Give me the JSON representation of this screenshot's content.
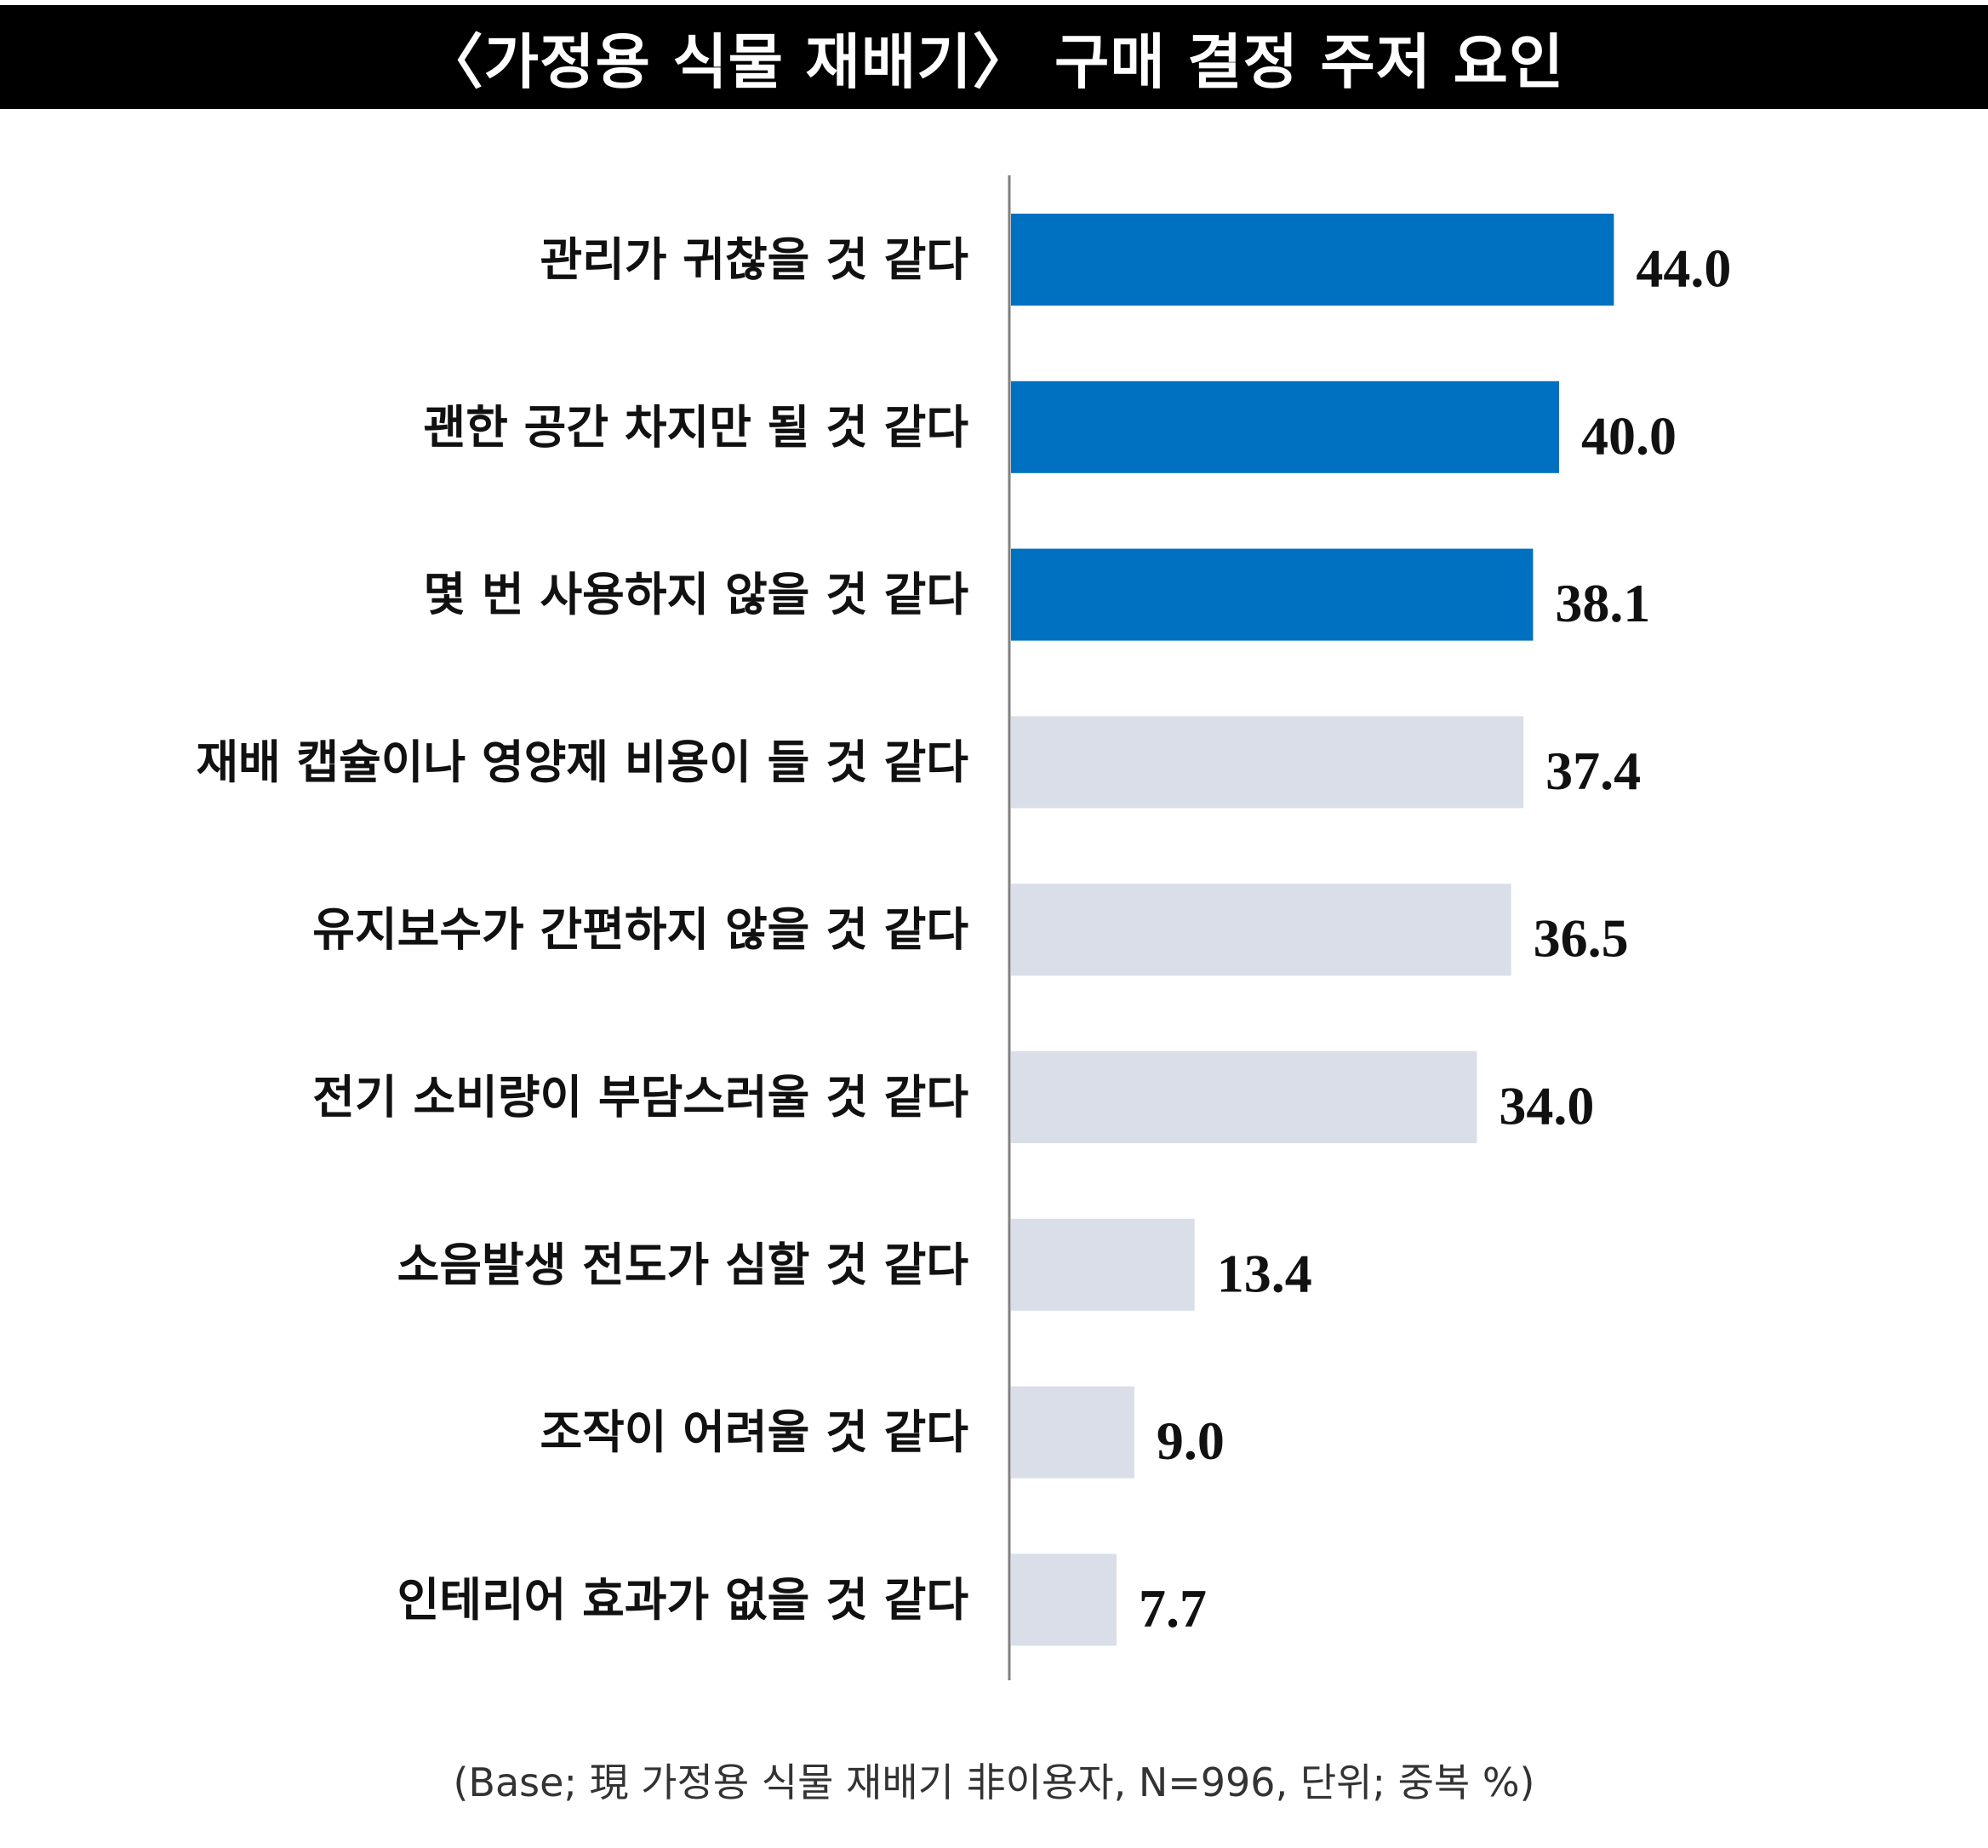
{
  "chart_data": {
    "type": "bar",
    "orientation": "horizontal",
    "title": "〈가정용 식물 재배기〉 구매 결정 주저 요인",
    "categories": [
      "관리가 귀찮을 것 같다",
      "괜한 공간 차지만 될 것 같다",
      "몇 번 사용하지 않을 것 같다",
      "재배 캡슐이나 영양제 비용이 들 것 같다",
      "유지보수가 간편하지 않을 것 같다",
      "전기 소비량이 부담스러울 것 같다",
      "소음발생 전도가 심할 것 같다",
      "조작이 어려울 것 같다",
      "인테리어 효과가 없을 것 같다"
    ],
    "values": [
      44.0,
      40.0,
      38.1,
      37.4,
      36.5,
      34.0,
      13.4,
      9.0,
      7.7
    ],
    "value_labels": [
      "44.0",
      "40.0",
      "38.1",
      "37.4",
      "36.5",
      "34.0",
      "13.4",
      "9.0",
      "7.7"
    ],
    "highlighted_count": 3,
    "colors": {
      "highlight": "#0070c0",
      "default": "#d9dee8",
      "axis": "#808080",
      "title_background": "#000000",
      "title_text": "#ffffff"
    },
    "xlim": [
      0,
      100
    ],
    "grid": false,
    "legend": "none",
    "footnote": "(Base; 現 가정용 식물 재배기 非이용자, N=996, 단위; 중복 %)"
  }
}
